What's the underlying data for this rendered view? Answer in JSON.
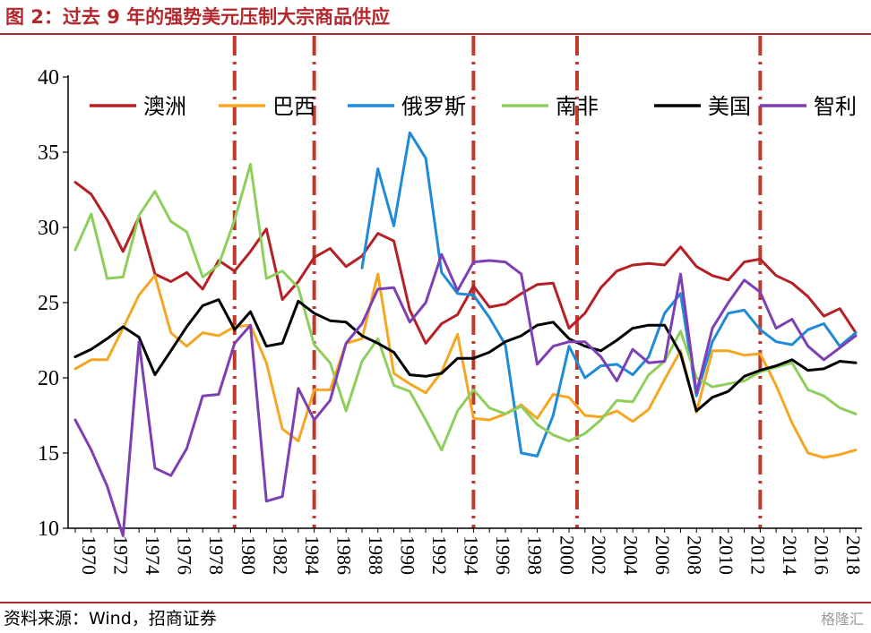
{
  "header": {
    "title": "图 2：过去 9 年的强势美元压制大宗商品供应"
  },
  "footer": {
    "source": "资料来源：Wind，招商证券",
    "watermark": "格隆汇"
  },
  "colors": {
    "title": "#b3282d",
    "vline": "#c0392b",
    "axis": "#000000"
  },
  "chart_data": {
    "type": "line",
    "title": "",
    "xlabel": "",
    "ylabel": "",
    "ylim": [
      10,
      40
    ],
    "yticks": [
      "10",
      "15",
      "20",
      "25",
      "30",
      "35",
      "40"
    ],
    "xlim": [
      1970,
      2019
    ],
    "xticks": [
      "1970",
      "1972",
      "1974",
      "1976",
      "1978",
      "1980",
      "1982",
      "1984",
      "1986",
      "1988",
      "1990",
      "1992",
      "1994",
      "1996",
      "1998",
      "2000",
      "2002",
      "2004",
      "2006",
      "2008",
      "2010",
      "2012",
      "2014",
      "2016",
      "2018"
    ],
    "vertical_markers": [
      1980,
      1985,
      1995,
      2001.5,
      2013
    ],
    "legend": {
      "placement": "top",
      "entries": [
        "澳洲",
        "巴西",
        "俄罗斯",
        "南非",
        "美国",
        "智利"
      ]
    },
    "series": [
      {
        "name": "澳洲",
        "color": "#b52025",
        "x": [
          1970,
          1971,
          1972,
          1973,
          1974,
          1975,
          1976,
          1977,
          1978,
          1979,
          1980,
          1981,
          1982,
          1983,
          1984,
          1985,
          1986,
          1987,
          1988,
          1989,
          1990,
          1991,
          1992,
          1993,
          1994,
          1995,
          1996,
          1997,
          1998,
          1999,
          2000,
          2001,
          2002,
          2003,
          2004,
          2005,
          2006,
          2007,
          2008,
          2009,
          2010,
          2011,
          2012,
          2013,
          2014,
          2015,
          2016,
          2017,
          2018,
          2019
        ],
        "values": [
          33.0,
          32.2,
          30.5,
          28.4,
          30.7,
          26.9,
          26.4,
          27.0,
          25.9,
          27.8,
          27.1,
          28.4,
          29.9,
          25.2,
          26.4,
          28.0,
          28.6,
          27.4,
          28.1,
          29.6,
          29.1,
          24.5,
          22.3,
          23.6,
          24.2,
          26.1,
          24.7,
          24.9,
          25.6,
          26.2,
          26.3,
          23.3,
          24.3,
          26.0,
          27.1,
          27.5,
          27.6,
          27.5,
          28.7,
          27.4,
          26.8,
          26.5,
          27.7,
          27.9,
          26.8,
          26.3,
          25.4,
          24.1,
          24.6,
          23.0
        ]
      },
      {
        "name": "巴西",
        "color": "#f5a623",
        "x": [
          1970,
          1971,
          1972,
          1973,
          1974,
          1975,
          1976,
          1977,
          1978,
          1979,
          1980,
          1981,
          1982,
          1983,
          1984,
          1985,
          1986,
          1987,
          1988,
          1989,
          1990,
          1991,
          1992,
          1993,
          1994,
          1995,
          1996,
          1997,
          1998,
          1999,
          2000,
          2001,
          2002,
          2003,
          2004,
          2005,
          2006,
          2007,
          2008,
          2009,
          2010,
          2011,
          2012,
          2013,
          2014,
          2015,
          2016,
          2017,
          2018,
          2019
        ],
        "values": [
          20.6,
          21.2,
          21.2,
          23.3,
          25.5,
          26.8,
          23.0,
          22.1,
          23.0,
          22.8,
          23.4,
          23.5,
          21.0,
          16.6,
          15.8,
          19.2,
          19.2,
          22.3,
          22.6,
          26.9,
          20.3,
          19.6,
          19.0,
          20.4,
          22.9,
          17.3,
          17.2,
          17.6,
          18.2,
          17.3,
          18.9,
          18.7,
          17.5,
          17.4,
          17.8,
          17.1,
          17.9,
          19.9,
          21.8,
          17.7,
          21.8,
          21.8,
          21.5,
          21.6,
          19.5,
          17.0,
          15.0,
          14.7,
          14.9,
          15.2
        ]
      },
      {
        "name": "俄罗斯",
        "color": "#1f8ad8",
        "x": [
          1988,
          1989,
          1990,
          1991,
          1992,
          1993,
          1994,
          1995,
          1996,
          1997,
          1998,
          1999,
          2000,
          2001,
          2002,
          2003,
          2004,
          2005,
          2006,
          2007,
          2008,
          2009,
          2010,
          2011,
          2012,
          2013,
          2014,
          2015,
          2016,
          2017,
          2018,
          2019
        ],
        "values": [
          27.3,
          33.9,
          30.1,
          36.3,
          34.6,
          27.0,
          25.6,
          25.5,
          24.0,
          22.2,
          15.0,
          14.8,
          17.5,
          22.1,
          20.0,
          20.8,
          20.9,
          20.2,
          21.4,
          24.3,
          25.6,
          18.8,
          22.4,
          24.3,
          24.5,
          23.2,
          22.4,
          22.2,
          23.2,
          23.6,
          22.1,
          23.0
        ]
      },
      {
        "name": "南非",
        "color": "#8ecf5b",
        "x": [
          1970,
          1971,
          1972,
          1973,
          1974,
          1975,
          1976,
          1977,
          1978,
          1979,
          1980,
          1981,
          1982,
          1983,
          1984,
          1985,
          1986,
          1987,
          1988,
          1989,
          1990,
          1991,
          1992,
          1993,
          1994,
          1995,
          1996,
          1997,
          1998,
          1999,
          2000,
          2001,
          2002,
          2003,
          2004,
          2005,
          2006,
          2007,
          2008,
          2009,
          2010,
          2011,
          2012,
          2013,
          2014,
          2015,
          2016,
          2017,
          2018,
          2019
        ],
        "values": [
          28.5,
          30.9,
          26.6,
          26.7,
          30.8,
          32.4,
          30.4,
          29.7,
          26.7,
          27.5,
          30.5,
          34.2,
          26.6,
          27.1,
          26.0,
          22.2,
          21.0,
          17.8,
          21.1,
          22.6,
          19.5,
          19.1,
          17.2,
          15.2,
          17.8,
          19.2,
          18.0,
          17.6,
          18.1,
          16.9,
          16.2,
          15.8,
          16.3,
          17.2,
          18.5,
          18.4,
          20.2,
          21.1,
          23.1,
          20.0,
          19.4,
          19.6,
          19.8,
          20.4,
          20.7,
          21.0,
          19.2,
          18.8,
          18.0,
          17.6
        ]
      },
      {
        "name": "美国",
        "color": "#000000",
        "x": [
          1970,
          1971,
          1972,
          1973,
          1974,
          1975,
          1976,
          1977,
          1978,
          1979,
          1980,
          1981,
          1982,
          1983,
          1984,
          1985,
          1986,
          1987,
          1988,
          1989,
          1990,
          1991,
          1992,
          1993,
          1994,
          1995,
          1996,
          1997,
          1998,
          1999,
          2000,
          2001,
          2002,
          2003,
          2004,
          2005,
          2006,
          2007,
          2008,
          2009,
          2010,
          2011,
          2012,
          2013,
          2014,
          2015,
          2016,
          2017,
          2018,
          2019
        ],
        "values": [
          21.4,
          21.9,
          22.6,
          23.4,
          22.7,
          20.2,
          21.8,
          23.4,
          24.8,
          25.2,
          23.2,
          24.4,
          22.1,
          22.3,
          25.1,
          24.3,
          23.8,
          23.7,
          22.8,
          22.3,
          21.7,
          20.2,
          20.1,
          20.3,
          21.3,
          21.3,
          21.7,
          22.4,
          22.8,
          23.5,
          23.7,
          22.6,
          22.1,
          21.8,
          22.5,
          23.3,
          23.5,
          23.5,
          21.6,
          17.8,
          18.7,
          19.1,
          20.1,
          20.5,
          20.8,
          21.2,
          20.5,
          20.6,
          21.1,
          21.0
        ]
      },
      {
        "name": "智利",
        "color": "#7e3fb5",
        "x": [
          1970,
          1971,
          1972,
          1973,
          1974,
          1975,
          1976,
          1977,
          1978,
          1979,
          1980,
          1981,
          1982,
          1983,
          1984,
          1985,
          1986,
          1987,
          1988,
          1989,
          1990,
          1991,
          1992,
          1993,
          1994,
          1995,
          1996,
          1997,
          1998,
          1999,
          2000,
          2001,
          2002,
          2003,
          2004,
          2005,
          2006,
          2007,
          2008,
          2009,
          2010,
          2011,
          2012,
          2013,
          2014,
          2015,
          2016,
          2017,
          2018,
          2019
        ],
        "values": [
          17.2,
          15.2,
          12.8,
          9.5,
          22.4,
          14.0,
          13.5,
          15.3,
          18.8,
          18.9,
          22.3,
          23.5,
          11.8,
          12.1,
          19.3,
          17.2,
          18.5,
          22.3,
          23.6,
          25.9,
          26.0,
          23.7,
          25.0,
          28.2,
          25.8,
          27.7,
          27.8,
          27.7,
          26.9,
          20.9,
          22.1,
          22.4,
          22.4,
          21.4,
          19.8,
          21.9,
          21.0,
          21.1,
          26.9,
          19.0,
          23.3,
          25.0,
          26.5,
          25.7,
          23.3,
          23.9,
          22.1,
          21.2,
          22.0,
          22.8
        ]
      }
    ]
  }
}
